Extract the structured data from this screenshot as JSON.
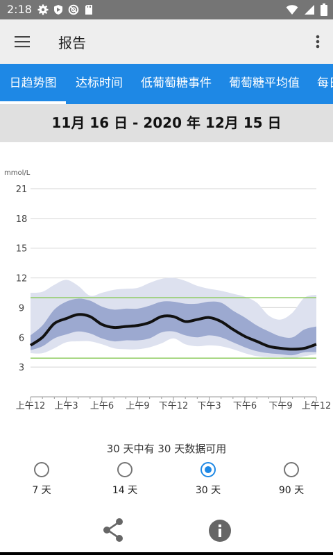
{
  "status_bar": {
    "time": "2:18",
    "icons": [
      "gear-icon",
      "shield-icon",
      "blocked-icon",
      "sd-card-icon",
      "wifi-icon",
      "signal-icon",
      "battery-icon"
    ]
  },
  "app_bar": {
    "title": "报告",
    "menu_icon": "hamburger-menu-icon",
    "more_icon": "more-vertical-icon"
  },
  "tabs": [
    {
      "label": "日趋势图",
      "active": true
    },
    {
      "label": "达标时间",
      "active": false
    },
    {
      "label": "低葡萄糖事件",
      "active": false
    },
    {
      "label": "葡萄糖平均值",
      "active": false
    },
    {
      "label": "每日",
      "active": false
    }
  ],
  "date_range": "11月 16 日 - 2020 年 12月 15 日",
  "chart_data": {
    "type": "area",
    "ylabel": "mmol/L",
    "ylim": [
      0,
      21
    ],
    "yticks": [
      "21",
      "18",
      "15",
      "12",
      "9",
      "6",
      "3"
    ],
    "yticks_values": [
      21,
      18,
      15,
      12,
      9,
      6,
      3
    ],
    "x_hours": [
      0,
      24
    ],
    "xticks": [
      "上午12",
      "上午3",
      "上午6",
      "上午9",
      "下午12",
      "下午3",
      "下午6",
      "下午9",
      "上午12"
    ],
    "target_range": [
      3.9,
      10.0
    ],
    "grid": true,
    "x": [
      0,
      1,
      2,
      3,
      4,
      5,
      6,
      7,
      8,
      9,
      10,
      11,
      12,
      13,
      14,
      15,
      16,
      17,
      18,
      19,
      20,
      21,
      22,
      23,
      24
    ],
    "median": [
      5.2,
      6.0,
      7.4,
      7.9,
      8.3,
      8.1,
      7.3,
      7.0,
      7.1,
      7.2,
      7.5,
      8.1,
      8.1,
      7.6,
      7.8,
      8.0,
      7.6,
      6.8,
      6.1,
      5.6,
      5.1,
      4.9,
      4.8,
      4.9,
      5.3
    ],
    "p25": [
      4.7,
      5.1,
      5.9,
      6.3,
      6.6,
      6.4,
      5.9,
      5.6,
      5.7,
      5.7,
      5.9,
      6.5,
      6.6,
      6.2,
      6.0,
      6.2,
      6.0,
      5.5,
      5.0,
      4.6,
      4.4,
      4.3,
      4.2,
      4.5,
      4.5
    ],
    "p75": [
      6.2,
      7.2,
      8.8,
      9.6,
      9.9,
      9.7,
      9.1,
      8.8,
      8.9,
      8.9,
      9.2,
      9.6,
      9.6,
      9.4,
      9.4,
      9.6,
      9.5,
      8.7,
      8.0,
      7.2,
      6.6,
      6.1,
      6.0,
      6.8,
      7.1
    ],
    "p10": [
      4.4,
      4.4,
      4.9,
      5.5,
      5.6,
      5.6,
      5.3,
      4.9,
      4.8,
      4.8,
      5.0,
      5.4,
      5.9,
      5.3,
      5.1,
      5.2,
      5.1,
      4.8,
      4.4,
      4.1,
      4.0,
      4.0,
      3.9,
      4.1,
      4.3
    ],
    "p90": [
      10.5,
      10.6,
      11.3,
      11.8,
      11.2,
      10.2,
      10.5,
      10.8,
      10.9,
      11.0,
      11.5,
      11.9,
      12.0,
      11.7,
      11.2,
      10.9,
      10.7,
      10.4,
      10.1,
      9.5,
      8.2,
      7.8,
      8.5,
      10.0,
      10.3
    ]
  },
  "availability": "30 天中有 30 天数据可用",
  "radio_options": [
    {
      "label": "7 天",
      "checked": false
    },
    {
      "label": "14 天",
      "checked": false
    },
    {
      "label": "30 天",
      "checked": true
    },
    {
      "label": "90 天",
      "checked": false
    }
  ],
  "bottom_actions": {
    "share_icon": "share-icon",
    "info_icon": "info-icon"
  },
  "colors": {
    "status_bar": "#757575",
    "tab_bar": "#1e88e5",
    "date_bar": "#e0e0e0",
    "band_outer": "#dde1ef",
    "band_inner": "#95a3cc",
    "median_line": "#111111",
    "target_line": "#8ccb5e",
    "radio_checked": "#1e88e5"
  }
}
